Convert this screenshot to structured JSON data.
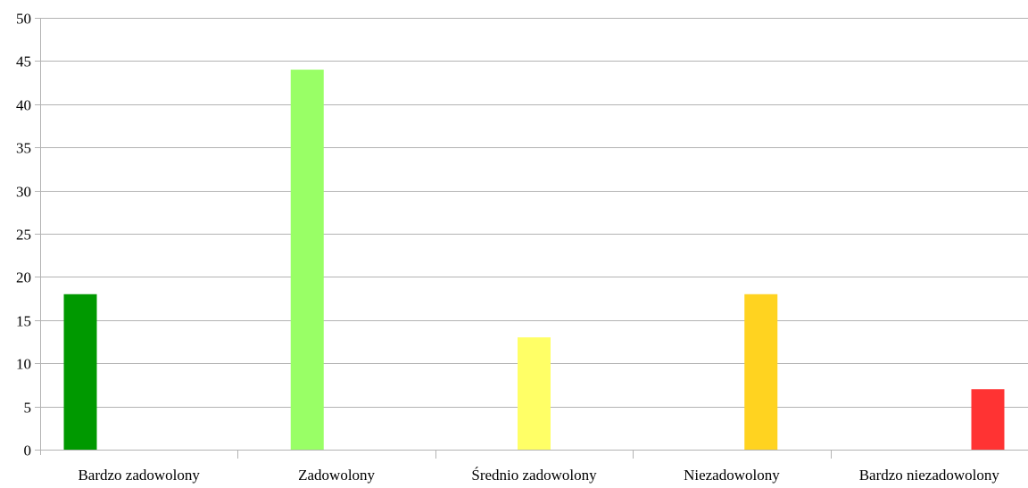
{
  "chart_data": {
    "type": "bar",
    "title": "",
    "xlabel": "",
    "ylabel": "",
    "categories": [
      "Bardzo zadowolony",
      "Zadowolony",
      "Średnio zadowolony",
      "Niezadowolony",
      "Bardzo niezadowolony"
    ],
    "values": [
      18,
      44,
      13,
      18,
      7
    ],
    "colors": [
      "#009900",
      "#99ff66",
      "#ffff66",
      "#ffd320",
      "#ff3333"
    ],
    "ylim": [
      0,
      50
    ],
    "yticks": [
      0,
      5,
      10,
      15,
      20,
      25,
      30,
      35,
      40,
      45,
      50
    ],
    "grid": true,
    "legend": "none",
    "gridline_color": "#b3b3b3"
  }
}
